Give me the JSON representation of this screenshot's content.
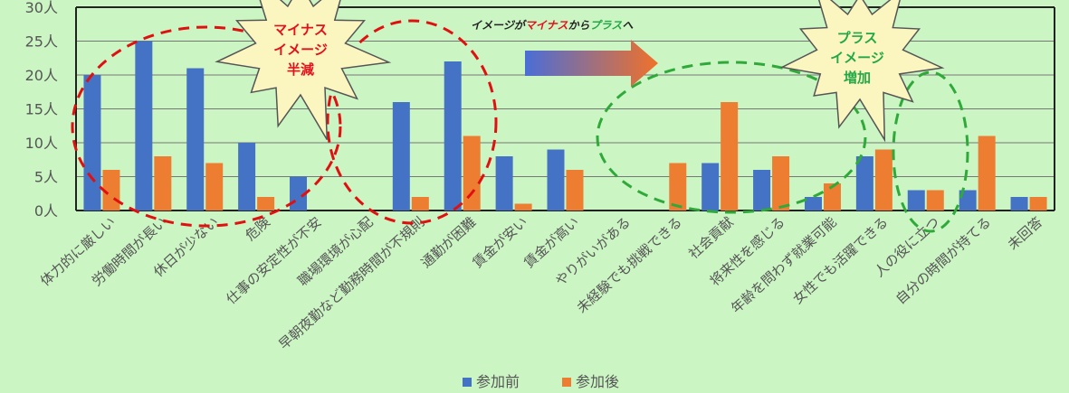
{
  "chart_data": {
    "type": "bar",
    "categories": [
      "体力的に厳しい",
      "労働時間が長い",
      "休日が少ない",
      "危険",
      "仕事の安定性が不安",
      "職場環境が心配",
      "早朝夜勤など勤務時間が不規則",
      "通勤が困難",
      "賃金が安い",
      "賃金が高い",
      "やりがいがある",
      "未経験でも挑戦できる",
      "社会貢献",
      "将来性を感じる",
      "年齢を問わず就業可能",
      "女性でも活躍できる",
      "人の役に立つ",
      "自分の時間が持てる",
      "未回答"
    ],
    "series": [
      {
        "name": "参加前",
        "values": [
          20,
          25,
          21,
          10,
          5,
          0,
          16,
          22,
          8,
          9,
          0,
          0,
          7,
          6,
          2,
          8,
          3,
          3,
          2
        ],
        "color": "#4472c4"
      },
      {
        "name": "参加後",
        "values": [
          6,
          8,
          7,
          2,
          0,
          0,
          2,
          11,
          1,
          6,
          0,
          7,
          16,
          8,
          4,
          9,
          3,
          11,
          2
        ],
        "color": "#ed7d31"
      }
    ],
    "y_tick_labels": [
      "0人",
      "5人",
      "10人",
      "15人",
      "20人",
      "25人",
      "30人"
    ],
    "ylim": [
      0,
      30
    ],
    "grid": true,
    "legend_position": "bottom",
    "annotations": {
      "star_left": [
        "マイナス",
        "イメージ",
        "半減"
      ],
      "star_right": [
        "プラス",
        "イメージ",
        "増加"
      ],
      "banner": {
        "prefix": "イメージが",
        "minus": "マイナス",
        "middle": "から",
        "plus": "プラス",
        "suffix": "へ"
      }
    }
  },
  "colors": {
    "background": "#ccf5c4",
    "grid": "#777777",
    "red_circle": "#e01010",
    "green_circle": "#2faa3a",
    "star_fill": "#fbf5c0"
  }
}
